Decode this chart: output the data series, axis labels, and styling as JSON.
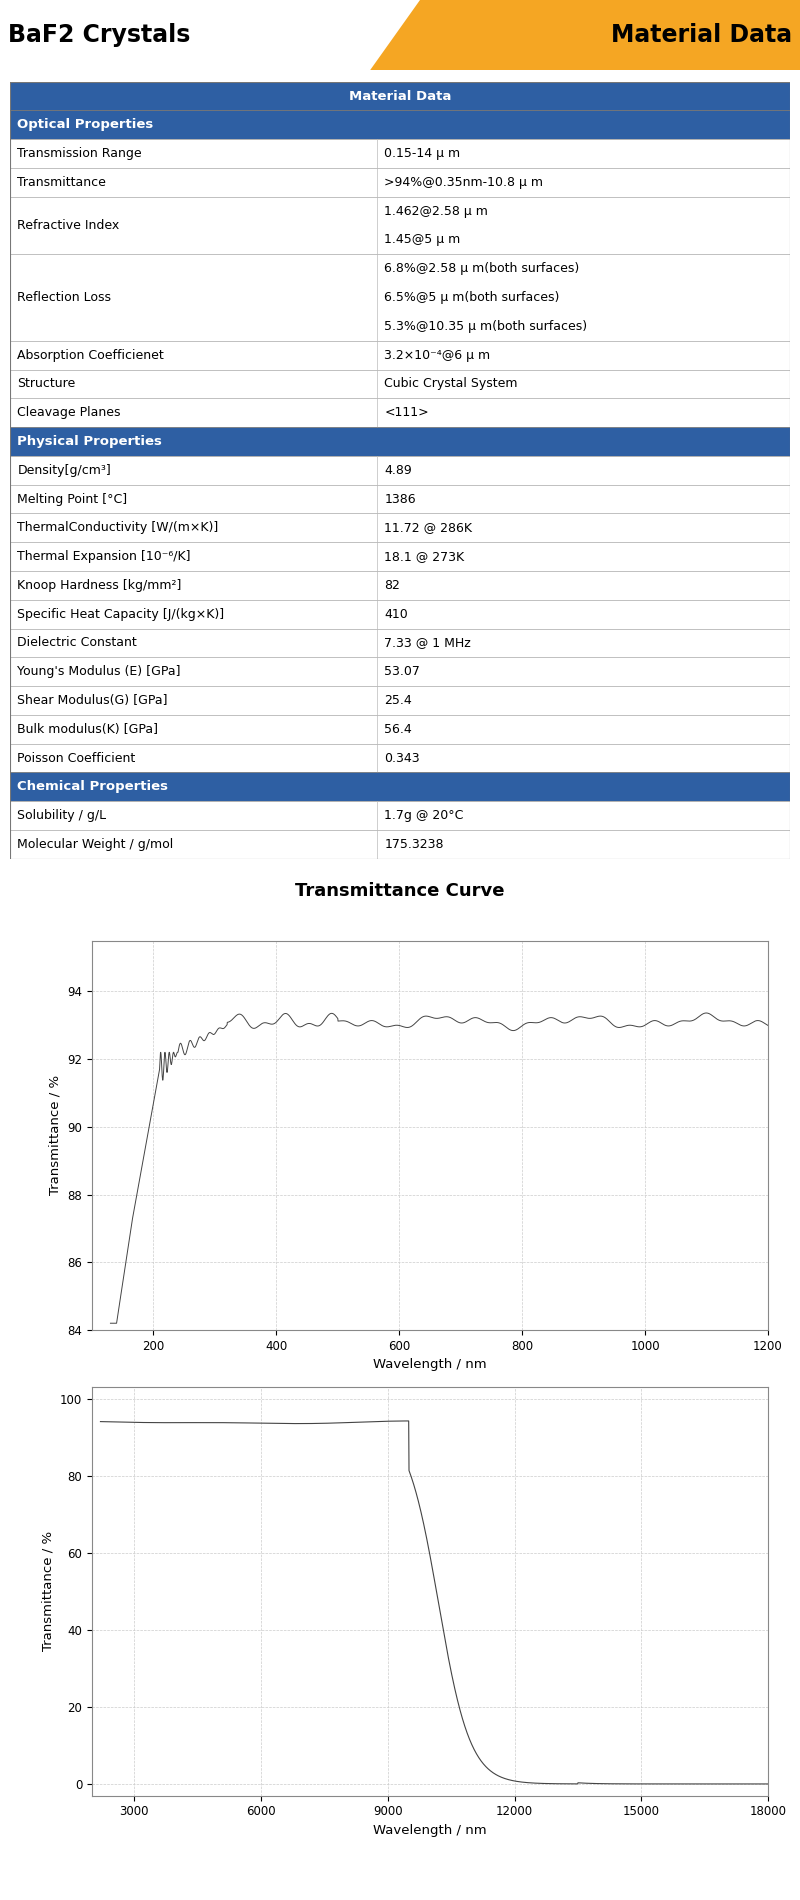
{
  "title_left": "BaF2 Crystals",
  "title_right": "Material Data",
  "section_color": "#2e5fa3",
  "section_text_color": "#ffffff",
  "orange_color": "#f5a623",
  "col_split": 0.47,
  "plot1_title": "Transmittance Curve",
  "plot1_xlabel": "Wavelength / nm",
  "plot1_ylabel": "Transmittance / %",
  "plot1_xlim": [
    100,
    1200
  ],
  "plot1_ylim": [
    84,
    95.5
  ],
  "plot1_xticks": [
    200,
    400,
    600,
    800,
    1000,
    1200
  ],
  "plot1_yticks": [
    84,
    86,
    88,
    90,
    92,
    94
  ],
  "plot2_xlabel": "Wavelength / nm",
  "plot2_ylabel": "Transmittance / %",
  "plot2_xlim": [
    2000,
    18000
  ],
  "plot2_ylim": [
    -3,
    103
  ],
  "plot2_xticks": [
    3000,
    6000,
    9000,
    12000,
    15000,
    18000
  ],
  "plot2_yticks": [
    0,
    20,
    40,
    60,
    80,
    100
  ],
  "line_color": "#444444",
  "grid_color": "#cccccc",
  "table_bg_even": "#ffffff",
  "table_bg_odd": "#ffffff",
  "border_color": "#aaaaaa"
}
